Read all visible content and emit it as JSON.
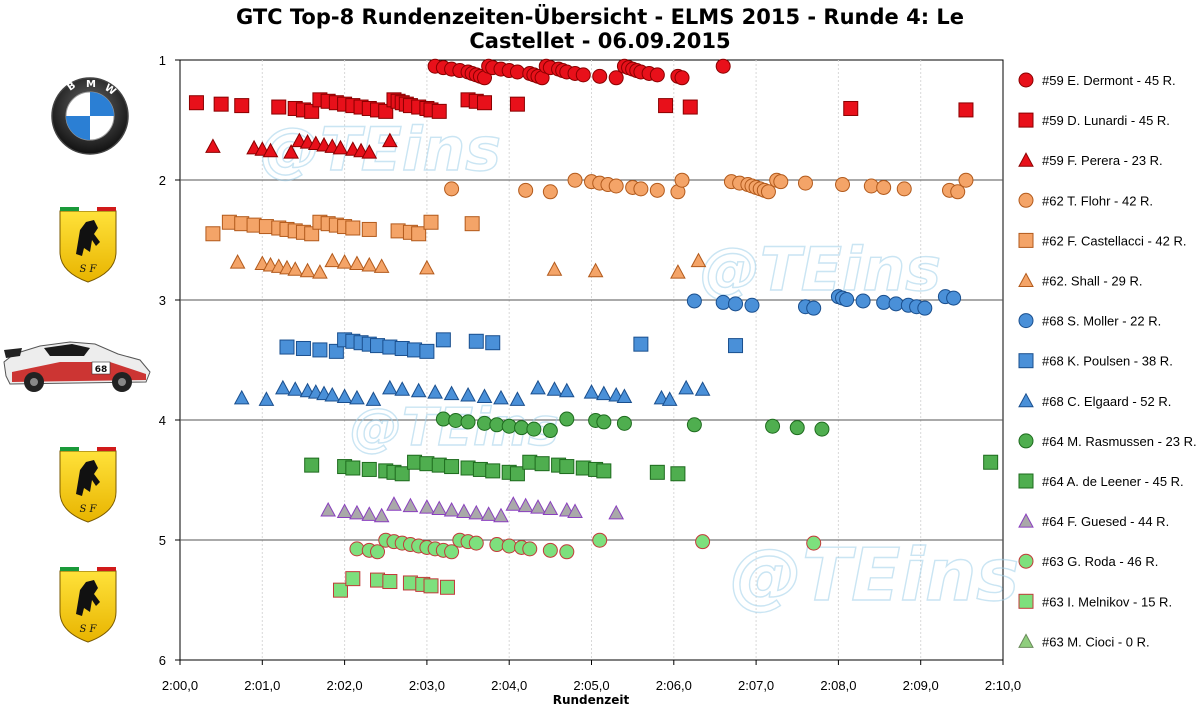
{
  "chart_data": {
    "type": "scatter",
    "title_line1": "GTC Top-8 Rundenzeiten-Übersicht - ELMS 2015 - Runde 4: Le",
    "title_line2": "Castellet - 06.09.2015",
    "xlabel": "Rundenzeit",
    "xlim": [
      120,
      130
    ],
    "ylim": [
      1,
      6
    ],
    "x_ticks": [
      "2:00,0",
      "2:01,0",
      "2:02,0",
      "2:03,0",
      "2:04,0",
      "2:05,0",
      "2:06,0",
      "2:07,0",
      "2:08,0",
      "2:09,0",
      "2:10,0"
    ],
    "y_ticks": [
      "1",
      "2",
      "3",
      "4",
      "5",
      "6"
    ],
    "grid": true,
    "legend_position": "right",
    "watermark": "@TEins",
    "car_images": [
      "bmw-logo",
      "ferrari-logo",
      "porsche-68-car",
      "ferrari-logo",
      "ferrari-logo"
    ],
    "series": [
      {
        "name": "#59 E. Dermont - 45 R.",
        "marker": "circle",
        "color": "#e8101a",
        "edge": "#8a0000",
        "y": 1.1,
        "x": [
          123.1,
          123.2,
          123.3,
          123.4,
          123.5,
          123.55,
          123.6,
          123.65,
          123.7,
          123.75,
          123.8,
          123.9,
          124.0,
          124.1,
          124.25,
          124.3,
          124.35,
          124.4,
          124.45,
          124.5,
          124.6,
          124.65,
          124.7,
          124.8,
          124.9,
          125.1,
          125.3,
          125.4,
          125.45,
          125.5,
          125.55,
          125.6,
          125.7,
          125.8,
          126.05,
          126.1,
          126.6
        ]
      },
      {
        "name": "#59 D. Lunardi - 45 R.",
        "marker": "square",
        "color": "#e8101a",
        "edge": "#8a0000",
        "y": 1.38,
        "x": [
          120.2,
          120.5,
          120.75,
          121.2,
          121.4,
          121.5,
          121.6,
          121.7,
          121.8,
          121.9,
          122.0,
          122.1,
          122.2,
          122.3,
          122.4,
          122.5,
          122.6,
          122.65,
          122.7,
          122.75,
          122.8,
          122.9,
          123.0,
          123.05,
          123.15,
          123.5,
          123.6,
          123.7,
          124.1,
          125.9,
          126.2,
          128.15,
          129.55
        ]
      },
      {
        "name": "#59 F. Perera - 23 R.",
        "marker": "triangle",
        "color": "#e8101a",
        "edge": "#8a0000",
        "y": 1.72,
        "x": [
          120.4,
          120.9,
          121.0,
          121.1,
          121.35,
          121.45,
          121.55,
          121.65,
          121.75,
          121.85,
          121.95,
          122.1,
          122.2,
          122.3,
          122.55
        ]
      },
      {
        "name": "#62 T. Flohr - 42 R.",
        "marker": "circle",
        "color": "#f4a468",
        "edge": "#b25a1c",
        "y": 2.05,
        "x": [
          123.3,
          124.2,
          124.5,
          124.8,
          125.0,
          125.1,
          125.2,
          125.3,
          125.5,
          125.6,
          125.8,
          126.05,
          126.1,
          126.7,
          126.8,
          126.9,
          126.95,
          127.0,
          127.05,
          127.1,
          127.15,
          127.25,
          127.3,
          127.6,
          128.05,
          128.4,
          128.55,
          128.8,
          129.35,
          129.45,
          129.55
        ]
      },
      {
        "name": "#62 F. Castellacci - 42 R.",
        "marker": "square",
        "color": "#f4a468",
        "edge": "#b25a1c",
        "y": 2.4,
        "x": [
          120.4,
          120.6,
          120.75,
          120.9,
          121.05,
          121.2,
          121.3,
          121.4,
          121.5,
          121.6,
          121.7,
          121.8,
          121.9,
          122.0,
          122.1,
          122.3,
          122.65,
          122.8,
          122.9,
          123.05,
          123.55
        ]
      },
      {
        "name": "#62. Shall - 29 R.",
        "marker": "triangle",
        "color": "#f4a468",
        "edge": "#b25a1c",
        "y": 2.72,
        "x": [
          120.7,
          121.0,
          121.1,
          121.2,
          121.3,
          121.4,
          121.55,
          121.7,
          121.85,
          122.0,
          122.15,
          122.3,
          122.45,
          123.0,
          124.55,
          125.05,
          126.05,
          126.3
        ]
      },
      {
        "name": "#68 S. Moller - 22 R.",
        "marker": "circle",
        "color": "#4a90d8",
        "edge": "#1a4f8e",
        "y": 3.02,
        "x": [
          126.25,
          126.6,
          126.75,
          126.95,
          127.6,
          127.7,
          128.0,
          128.05,
          128.1,
          128.3,
          128.55,
          128.7,
          128.85,
          128.95,
          129.05,
          129.3,
          129.4
        ]
      },
      {
        "name": "#68 K. Poulsen - 38 R.",
        "marker": "square",
        "color": "#4a90d8",
        "edge": "#1a4f8e",
        "y": 3.38,
        "x": [
          121.3,
          121.5,
          121.7,
          121.9,
          122.0,
          122.1,
          122.2,
          122.3,
          122.4,
          122.55,
          122.7,
          122.85,
          123.0,
          123.2,
          123.6,
          123.8,
          125.6,
          126.75
        ]
      },
      {
        "name": "#68 C. Elgaard - 52 R.",
        "marker": "triangle",
        "color": "#4a90d8",
        "edge": "#1a4f8e",
        "y": 3.78,
        "x": [
          120.75,
          121.05,
          121.25,
          121.4,
          121.55,
          121.65,
          121.75,
          121.85,
          122.0,
          122.15,
          122.35,
          122.55,
          122.7,
          122.9,
          123.1,
          123.3,
          123.5,
          123.7,
          123.9,
          124.1,
          124.35,
          124.55,
          124.7,
          125.0,
          125.15,
          125.3,
          125.4,
          125.85,
          125.95,
          126.15,
          126.35
        ]
      },
      {
        "name": "#64 M. Rasmussen - 23 R.",
        "marker": "circle",
        "color": "#4fae4f",
        "edge": "#1e6b1e",
        "y": 4.04,
        "x": [
          123.2,
          123.35,
          123.5,
          123.7,
          123.85,
          124.0,
          124.15,
          124.3,
          124.5,
          124.7,
          125.05,
          125.15,
          125.4,
          126.25,
          127.2,
          127.5,
          127.8
        ]
      },
      {
        "name": "#64 A. de Leener - 45 R.",
        "marker": "square",
        "color": "#4fae4f",
        "edge": "#1e6b1e",
        "y": 4.4,
        "x": [
          121.6,
          122.0,
          122.1,
          122.3,
          122.5,
          122.6,
          122.7,
          122.85,
          123.0,
          123.15,
          123.3,
          123.5,
          123.65,
          123.8,
          124.0,
          124.1,
          124.25,
          124.4,
          124.6,
          124.7,
          124.9,
          125.05,
          125.15,
          125.8,
          126.05,
          129.85
        ]
      },
      {
        "name": "#64 F. Guesed - 44 R.",
        "marker": "triangle",
        "color": "#a9a9a9",
        "edge": "#8a3fbf",
        "y": 4.75,
        "x": [
          121.8,
          122.0,
          122.15,
          122.3,
          122.45,
          122.6,
          122.8,
          123.0,
          123.15,
          123.3,
          123.45,
          123.6,
          123.75,
          123.9,
          124.05,
          124.2,
          124.35,
          124.5,
          124.7,
          124.8,
          125.3
        ]
      },
      {
        "name": "#63 G. Roda - 46 R.",
        "marker": "circle",
        "color": "#7de07d",
        "edge": "#c23a3a",
        "y": 5.05,
        "x": [
          122.15,
          122.3,
          122.4,
          122.5,
          122.6,
          122.7,
          122.8,
          122.9,
          123.0,
          123.1,
          123.2,
          123.3,
          123.4,
          123.5,
          123.6,
          123.85,
          124.0,
          124.15,
          124.25,
          124.5,
          124.7,
          125.1,
          126.35,
          127.7
        ]
      },
      {
        "name": "#63 I. Melnikov - 15 R.",
        "marker": "square",
        "color": "#7de07d",
        "edge": "#c23a3a",
        "y": 5.37,
        "x": [
          121.95,
          122.1,
          122.4,
          122.55,
          122.8,
          122.95,
          123.05,
          123.25
        ]
      },
      {
        "name": "#63 M. Cioci - 0 R.",
        "marker": "triangle",
        "color": "#8fce7d",
        "edge": "#6a8a5a",
        "y": null,
        "x": []
      }
    ]
  }
}
